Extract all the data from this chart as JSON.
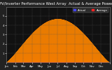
{
  "title": "Solar PV/Inverter Performance West Array  Actual & Average Power Output",
  "title_fontsize": 3.8,
  "bg_color": "#222222",
  "plot_bg_color": "#111111",
  "fill_color": "#ff0000",
  "line_color": "#dd0000",
  "avg_line_color": "#ff8800",
  "legend_actual_color": "#4444ff",
  "legend_avg_color": "#ff2222",
  "tick_fontsize": 2.8,
  "ylim": [
    0,
    6
  ],
  "ytick_labels": [
    "1",
    "2",
    "3",
    "4",
    "5"
  ],
  "ytick_vals": [
    1,
    2,
    3,
    4,
    5
  ],
  "grid_color": "#555555",
  "num_days": 365,
  "points_per_day": 48,
  "peak_power": 5.5,
  "seasonal_peak_day": 172
}
